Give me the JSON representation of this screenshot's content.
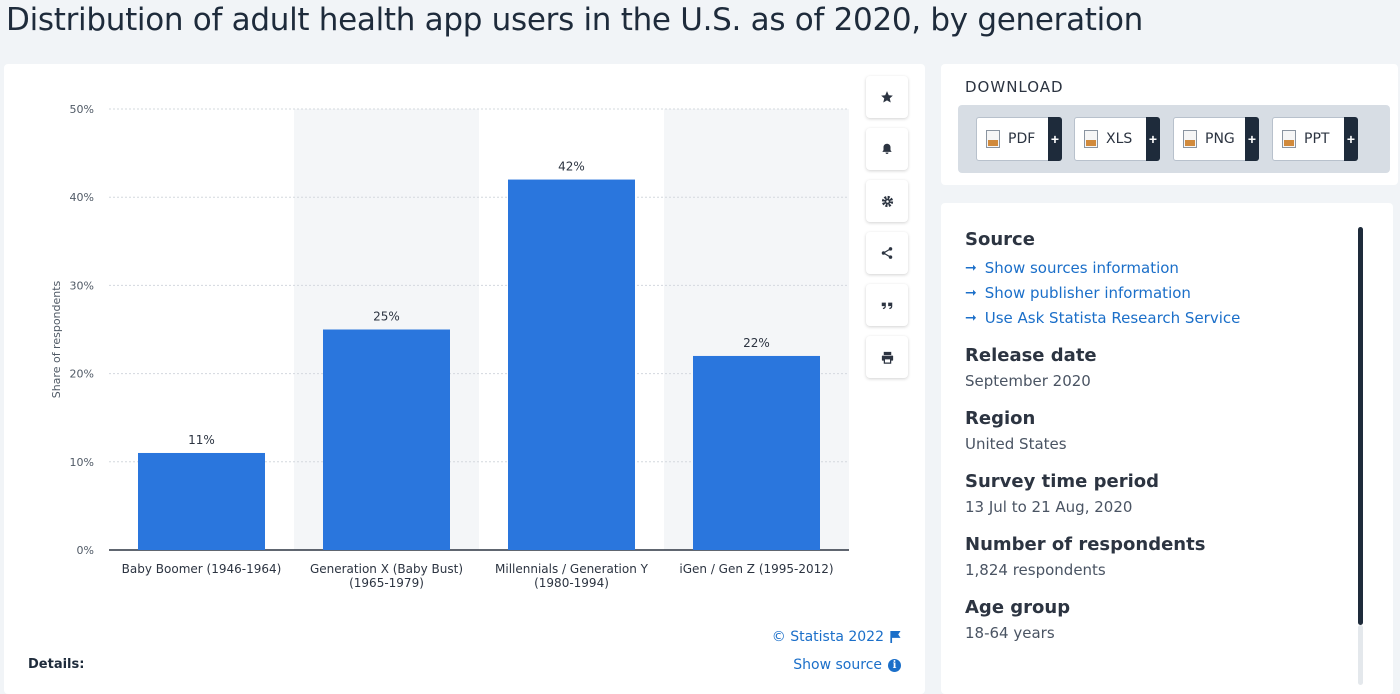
{
  "page_title": "Distribution of adult health app users in the U.S. as of 2020, by generation",
  "toolbar": {
    "icons": [
      "star-icon",
      "bell-icon",
      "gear-icon",
      "share-icon",
      "quote-icon",
      "print-icon"
    ]
  },
  "chart_data": {
    "type": "bar",
    "categories": [
      [
        "Baby Boomer (1946-1964)"
      ],
      [
        "Generation X (Baby Bust)",
        "(1965-1979)"
      ],
      [
        "Millennials / Generation Y",
        "(1980-1994)"
      ],
      [
        "iGen / Gen Z (1995-2012)"
      ]
    ],
    "values": [
      11,
      25,
      42,
      22
    ],
    "value_labels": [
      "11%",
      "25%",
      "42%",
      "22%"
    ],
    "yticks": [
      "0%",
      "10%",
      "20%",
      "30%",
      "40%",
      "50%"
    ],
    "ylim": [
      0,
      50
    ],
    "ylabel": "Share of respondents",
    "grid": true,
    "bar_color": "#2a76dd"
  },
  "chart_footer": {
    "credit": "© Statista 2022",
    "show_source": "Show source",
    "details": "Details:"
  },
  "download": {
    "title": "DOWNLOAD",
    "buttons": [
      {
        "label": "PDF",
        "plus": "+"
      },
      {
        "label": "XLS",
        "plus": "+"
      },
      {
        "label": "PNG",
        "plus": "+"
      },
      {
        "label": "PPT",
        "plus": "+"
      }
    ]
  },
  "info": {
    "source_heading": "Source",
    "links": [
      "Show sources information",
      "Show publisher information",
      "Use Ask Statista Research Service"
    ],
    "release_heading": "Release date",
    "release_value": "September 2020",
    "region_heading": "Region",
    "region_value": "United States",
    "survey_heading": "Survey time period",
    "survey_value": "13 Jul to 21 Aug, 2020",
    "respondents_heading": "Number of respondents",
    "respondents_value": "1,824 respondents",
    "age_heading": "Age group",
    "age_value": "18-64 years"
  }
}
